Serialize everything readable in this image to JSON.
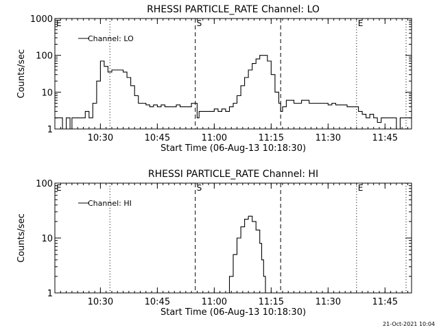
{
  "footer": {
    "timestamp": "21-Oct-2021 10:04"
  },
  "chart_data": [
    {
      "type": "line",
      "title": "RHESSI PARTICLE_RATE Channel: LO",
      "xlabel": "Start Time (06-Aug-13 10:18:30)",
      "ylabel": "Counts/sec",
      "yscale": "log",
      "ylim": [
        1,
        1000
      ],
      "xlim": [
        0,
        94
      ],
      "x_ticks": [
        {
          "x": 12,
          "label": "10:30"
        },
        {
          "x": 27,
          "label": "10:45"
        },
        {
          "x": 42,
          "label": "11:00"
        },
        {
          "x": 57,
          "label": "11:15"
        },
        {
          "x": 72,
          "label": "11:30"
        },
        {
          "x": 87,
          "label": "11:45"
        }
      ],
      "y_ticks": [
        {
          "y": 1,
          "label": "1"
        },
        {
          "y": 10,
          "label": "10"
        },
        {
          "y": 100,
          "label": "100"
        },
        {
          "y": 1000,
          "label": "1000"
        }
      ],
      "legend": {
        "label": "Channel: LO",
        "position": "top-left"
      },
      "markers": [
        {
          "x": 0,
          "label": "E",
          "style": "none"
        },
        {
          "x": 14.5,
          "label": "",
          "style": "dotted"
        },
        {
          "x": 37,
          "label": "S",
          "style": "dashed"
        },
        {
          "x": 59.5,
          "label": "",
          "style": "dashed"
        },
        {
          "x": 79.5,
          "label": "E",
          "style": "dotted"
        },
        {
          "x": 95,
          "label": "",
          "style": "dotted"
        }
      ],
      "series": [
        {
          "x": [
            0,
            1,
            2,
            3,
            3.5,
            4,
            4.5,
            5,
            6,
            7,
            8,
            9,
            10,
            11,
            12,
            13,
            14,
            15,
            16,
            17,
            18,
            19,
            20,
            21,
            22,
            23,
            24,
            25,
            26,
            27,
            28,
            29,
            30,
            31,
            32,
            33,
            34,
            35,
            36,
            37,
            37.5,
            38,
            39,
            40,
            41,
            42,
            43,
            44,
            45,
            46,
            47,
            48,
            49,
            50,
            51,
            52,
            53,
            54,
            55,
            56,
            57,
            58,
            59,
            59.5,
            60,
            61,
            62,
            63,
            64,
            65,
            66,
            67,
            68,
            69,
            70,
            71,
            72,
            73,
            74,
            75,
            76,
            77,
            78,
            79,
            80,
            81,
            82,
            83,
            84,
            85,
            86,
            87,
            88,
            89,
            90,
            91,
            92,
            93,
            94
          ],
          "y": [
            2,
            2,
            1,
            2,
            2,
            1,
            2,
            2,
            2,
            2,
            3,
            2,
            5,
            20,
            70,
            50,
            35,
            40,
            40,
            40,
            35,
            25,
            15,
            8,
            5,
            5,
            4.5,
            4,
            4.5,
            4,
            4.5,
            4,
            4,
            4,
            4.5,
            4,
            4,
            4,
            5,
            5,
            2,
            3,
            3,
            3,
            3,
            3.5,
            3,
            3.5,
            3,
            4,
            5,
            8,
            15,
            25,
            40,
            60,
            80,
            100,
            100,
            70,
            30,
            10,
            5,
            3,
            4,
            6,
            6,
            5,
            5,
            6,
            6,
            5,
            5,
            5,
            5,
            5,
            4.5,
            5,
            4.5,
            4.5,
            4.5,
            4,
            4,
            4,
            3,
            2.5,
            2,
            2.5,
            2,
            1.5,
            2,
            2,
            2,
            2,
            1,
            2,
            2,
            2,
            2
          ]
        }
      ]
    },
    {
      "type": "line",
      "title": "RHESSI PARTICLE_RATE Channel: HI",
      "xlabel": "Start Time (06-Aug-13 10:18:30)",
      "ylabel": "Counts/sec",
      "yscale": "log",
      "ylim": [
        1,
        100
      ],
      "xlim": [
        0,
        94
      ],
      "x_ticks": [
        {
          "x": 12,
          "label": "10:30"
        },
        {
          "x": 27,
          "label": "10:45"
        },
        {
          "x": 42,
          "label": "11:00"
        },
        {
          "x": 57,
          "label": "11:15"
        },
        {
          "x": 72,
          "label": "11:30"
        },
        {
          "x": 87,
          "label": "11:45"
        }
      ],
      "y_ticks": [
        {
          "y": 1,
          "label": "1"
        },
        {
          "y": 10,
          "label": "10"
        },
        {
          "y": 100,
          "label": "100"
        }
      ],
      "legend": {
        "label": "Channel: HI",
        "position": "top-left"
      },
      "markers": [
        {
          "x": 0,
          "label": "E",
          "style": "none"
        },
        {
          "x": 14.5,
          "label": "",
          "style": "dotted"
        },
        {
          "x": 37,
          "label": "S",
          "style": "dashed"
        },
        {
          "x": 59.5,
          "label": "",
          "style": "dashed"
        },
        {
          "x": 79.5,
          "label": "E",
          "style": "dotted"
        },
        {
          "x": 95,
          "label": "",
          "style": "dotted"
        }
      ],
      "series": [
        {
          "x": [
            45.5,
            46,
            47,
            48,
            49,
            50,
            51,
            52,
            53,
            54,
            54.5,
            55,
            55.5
          ],
          "y": [
            1,
            2,
            5,
            10,
            16,
            22,
            25,
            20,
            14,
            8,
            4,
            2,
            1
          ]
        }
      ]
    }
  ]
}
